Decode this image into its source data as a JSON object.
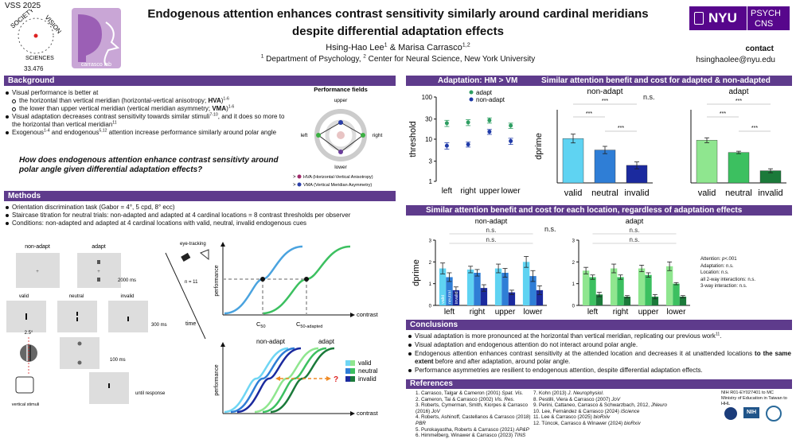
{
  "header": {
    "venue": "VSS 2025",
    "society": [
      "SOCIETY",
      "VISION",
      "SCIENCES"
    ],
    "poster_number": "33.476",
    "lab": "carrasco lab",
    "title": [
      "Endogenous attention enhances contrast sensitivity similarly around cardinal meridians",
      "despite differential adaptation effects"
    ],
    "authors": [
      {
        "text": "Hsing-Hao Lee"
      },
      {
        "sup": "1"
      },
      {
        "text": "  &  Marisa Carrasco"
      },
      {
        "sup": "1,2"
      }
    ],
    "affiliations": [
      {
        "sup": "1"
      },
      {
        "text": " Department of Psychology, "
      },
      {
        "sup": "2"
      },
      {
        "text": " Center for Neural Science, New York University"
      }
    ],
    "institution": {
      "name": "NYU",
      "dept": [
        "PSYCH",
        "CNS"
      ]
    },
    "contact": {
      "label": "contact",
      "email": "hsinghaolee@nyu.edu"
    }
  },
  "background": {
    "heading": "Background",
    "bullets": [
      {
        "runs": [
          {
            "text": "Visual performance is better at"
          }
        ]
      },
      {
        "indent": true,
        "runs": [
          {
            "text": "the horizontal than vertical meridian (horizontal-vertical anisotropy; "
          },
          {
            "b": "HVA"
          },
          {
            "text": ")"
          },
          {
            "sup": "1-6"
          }
        ]
      },
      {
        "indent": true,
        "runs": [
          {
            "text": "the lower than upper vertical meridian (vertical meridian asymmetry; "
          },
          {
            "b": "VMA"
          },
          {
            "text": ")"
          },
          {
            "sup": "1-6"
          }
        ]
      },
      {
        "runs": [
          {
            "text": "Visual adaptation decreases contrast sensitivity towards similar stimuli"
          },
          {
            "sup": "7-10"
          },
          {
            "text": ", and it does so more to the horizontal than vertical meridian"
          },
          {
            "sup": "11"
          }
        ]
      },
      {
        "runs": [
          {
            "text": "Exogenous"
          },
          {
            "sup": "1-4"
          },
          {
            "text": " and endogenous"
          },
          {
            "sup": "5,12"
          },
          {
            "text": " attention increase performance similarly around polar angle"
          }
        ]
      }
    ],
    "question": "How does endogenous attention enhance contrast sensitivty around polar angle given differential adaptation effects?",
    "figure": {
      "title": "Performance fields",
      "locations": [
        "upper",
        "left",
        "right",
        "lower"
      ],
      "legend": [
        {
          "sym": ">",
          "text": "HVA (Horizontal-Vertical Anisotropy)"
        },
        {
          "sym": ">",
          "text": "VMA (Vertical Meridian Asymmetry)"
        }
      ]
    }
  },
  "methods": {
    "heading": "Methods",
    "bullets": [
      "Orientation discrimination task (Gabor = 4°, 5 cpd, 8° ecc)",
      "Staircase titration for neutral trials: non-adapted and adapted at 4 cardinal locations = 8 contrast thresholds per observer",
      "Conditions: non-adapted and adapted at 4 cardinal locations with valid, neutral, invalid endogenous cues"
    ],
    "figure": {
      "columns": [
        "non-adapt",
        "adapt"
      ],
      "durations": [
        "2000 ms",
        "300 ms",
        "100 ms",
        "until response"
      ],
      "cues": [
        "valid",
        "neutral",
        "invalid"
      ],
      "angle": "2.5°",
      "stimulus_label": "vertical stimuli",
      "eyetracking": "eye-tracking",
      "n": "n = 11",
      "time": "time",
      "psychometric": {
        "ylabel": "performance",
        "xlabel": "contrast",
        "c": "C",
        "sub": [
          "50",
          "50-adapted"
        ]
      },
      "attention_plot": {
        "titles": [
          "non-adapt",
          "adapt"
        ],
        "ylabel": "performance",
        "xlabel": "contrast",
        "legend": [
          "valid",
          "neutral",
          "invalid"
        ],
        "question": "?"
      }
    }
  },
  "results": {
    "heading_left": "Adaptation: HM > VM",
    "heading_right": "Similar attention benefit and cost for adapted & non-adapted",
    "threshold_chart": {
      "type": "scatter",
      "ylabel": "threshold",
      "categories": [
        "left",
        "right",
        "upper",
        "lower"
      ],
      "series": [
        {
          "name": "adapt",
          "color": "#2e9e62",
          "values": [
            24,
            25,
            28,
            21
          ],
          "errors": [
            4,
            4,
            4,
            3
          ]
        },
        {
          "name": "non-adapt",
          "color": "#1f3aa8",
          "values": [
            7,
            7.5,
            15,
            9
          ],
          "errors": [
            1.2,
            1,
            2,
            1.5
          ]
        }
      ],
      "ylim": [
        1,
        100
      ],
      "yticks": [
        1,
        3,
        10,
        30,
        100
      ],
      "log": true
    },
    "between": "n.s.",
    "dprime_charts": [
      {
        "type": "bar",
        "title": "non-adapt",
        "ylabel": "dprime",
        "categories": [
          "valid",
          "neutral",
          "invalid"
        ],
        "colors": [
          "#5fd3f2",
          "#2f7ed6",
          "#1b2a9e"
        ],
        "values": [
          1.82,
          1.35,
          0.72
        ],
        "errors": [
          0.18,
          0.15,
          0.14
        ],
        "ylim": [
          0,
          3
        ],
        "sig": [
          "***",
          "***",
          "***"
        ]
      },
      {
        "type": "bar",
        "title": "adapt",
        "categories": [
          "valid",
          "neutral",
          "invalid"
        ],
        "colors": [
          "#8fe68f",
          "#3cc060",
          "#1b7a3a"
        ],
        "values": [
          1.75,
          1.25,
          0.5
        ],
        "errors": [
          0.1,
          0.05,
          0.08
        ],
        "ylim": [
          0,
          3
        ],
        "sig": [
          "***",
          "***",
          "***"
        ]
      }
    ],
    "location_heading": "Similar attention benefit and cost for each location, regardless of adaptation effects",
    "location_between": "n.s.",
    "location_charts": [
      {
        "type": "grouped_bar",
        "title": "non-adapt",
        "ylabel": "dprime",
        "categories": [
          "left",
          "right",
          "upper",
          "lower"
        ],
        "series": [
          {
            "name": "valid",
            "color": "#5fd3f2",
            "values": [
              1.7,
              1.65,
              1.7,
              2.0
            ],
            "errors": [
              0.25,
              0.15,
              0.2,
              0.25
            ]
          },
          {
            "name": "neutral",
            "color": "#2f7ed6",
            "values": [
              1.3,
              1.5,
              1.5,
              1.35
            ],
            "errors": [
              0.2,
              0.15,
              0.2,
              0.25
            ]
          },
          {
            "name": "invalid",
            "color": "#1b2a9e",
            "values": [
              0.7,
              0.8,
              0.6,
              0.7
            ],
            "errors": [
              0.15,
              0.15,
              0.1,
              0.2
            ]
          }
        ],
        "ylim": [
          0,
          3
        ],
        "yticks": [
          0,
          1,
          2,
          3
        ],
        "ns": [
          "n.s.",
          "n.s."
        ]
      },
      {
        "type": "grouped_bar",
        "title": "adapt",
        "categories": [
          "left",
          "right",
          "upper",
          "lower"
        ],
        "series": [
          {
            "color": "#8fe68f",
            "values": [
              1.6,
              1.7,
              1.7,
              1.8
            ],
            "errors": [
              0.15,
              0.2,
              0.15,
              0.2
            ]
          },
          {
            "color": "#3cc060",
            "values": [
              1.3,
              1.3,
              1.4,
              1.0
            ],
            "errors": [
              0.1,
              0.1,
              0.1,
              0.05
            ]
          },
          {
            "color": "#1b7a3a",
            "values": [
              0.5,
              0.4,
              0.4,
              0.4
            ],
            "errors": [
              0.1,
              0.05,
              0.1,
              0.05
            ]
          }
        ],
        "ylim": [
          0,
          3
        ],
        "yticks": [
          0,
          1,
          2,
          3
        ],
        "ns": [
          "n.s.",
          "n.s."
        ]
      }
    ],
    "stats": [
      [
        {
          "text": "Attention: "
        },
        {
          "i": "p"
        },
        {
          "text": "<.001"
        }
      ],
      [
        {
          "text": "Adaptation: n.s."
        }
      ],
      [
        {
          "text": "Location: n.s."
        }
      ],
      [
        {
          "text": "all 2-way interactions: n.s."
        }
      ],
      [
        {
          "text": "3-way interaction: n.s."
        }
      ]
    ]
  },
  "conclusions": {
    "heading": "Conclusions",
    "bullets": [
      [
        {
          "text": "Visual adaptation is more pronounced at the horizontal than vertical meridian, replicating our previous work"
        },
        {
          "sup": "11"
        },
        {
          "text": "."
        }
      ],
      [
        {
          "text": "Visual adaptation and endogenous attention do not interact around polar angle."
        }
      ],
      [
        {
          "text": "Endogenous attention enhances contrast sensitivity at the attended location and decreases it at unattended locations "
        },
        {
          "b": "to the same extent"
        },
        {
          "text": " before and after adaptation, around polar angle."
        }
      ],
      [
        {
          "text": "Performance asymmetries are resilient to endogenous attention, despite differential adaptation effects."
        }
      ]
    ]
  },
  "references": {
    "heading": "References",
    "items": [
      [
        {
          "text": "1. Carrasco, Talgar & Cameron (2001) "
        },
        {
          "i": "Spat. Vis."
        }
      ],
      [
        {
          "text": "2. Cameron, Tai & Carrasco (2002) "
        },
        {
          "i": "Vis. Res."
        }
      ],
      [
        {
          "text": "3. Roberts, Cymerman, Smith, Kiorpes & Carrasco (2016) "
        },
        {
          "i": "JoV"
        }
      ],
      [
        {
          "text": "4. Roberts, Ashinoff, Castellanos & Carrasco (2018) "
        },
        {
          "i": "PBR"
        }
      ],
      [
        {
          "text": "5. Purokayastha, Roberts & Carrasco (2021) "
        },
        {
          "i": "AP&P"
        }
      ],
      [
        {
          "text": "6. Himmelberg, Winawer & Carrasco (2023) "
        },
        {
          "i": "TINS"
        }
      ],
      [
        {
          "text": "7. Kohn (2013) "
        },
        {
          "i": "J. Neurophysiol."
        }
      ],
      [
        {
          "text": "8. Pestilli, Viera & Carrasco (2007) "
        },
        {
          "i": "JoV"
        }
      ],
      [
        {
          "text": "9. Perini, Cattaneo, Carrasco & Schwarzbach, 2012, "
        },
        {
          "i": "JNeuro"
        }
      ],
      [
        {
          "text": "10. Lee, Fernández & Carrasco (2024) "
        },
        {
          "i": "iScience"
        }
      ],
      [
        {
          "text": "11. Lee & Carrasco (2025) "
        },
        {
          "i": "bioRxiv"
        }
      ],
      [
        {
          "text": "12. Tüncok, Carrasco & Winawer (2024) "
        },
        {
          "i": "bioRxiv"
        }
      ]
    ]
  },
  "funding": [
    "NIH R01-EY027401 to MC",
    "Ministry of Education in Taiwan to HHL"
  ],
  "funder_logos": [
    "NIH"
  ]
}
